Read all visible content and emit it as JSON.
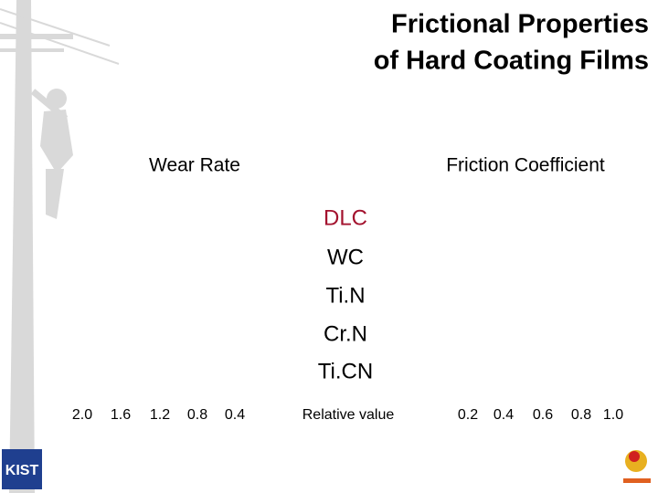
{
  "header": {
    "title": [
      "Frictional Properties",
      "of Hard Coating Films"
    ]
  },
  "axes": {
    "left_label": "Wear Rate",
    "right_label": "Friction Coefficient",
    "center_label": "Relative value",
    "left_ticks": [
      "2.0",
      "1.6",
      "1.2",
      "0.8",
      "0.4"
    ],
    "right_ticks": [
      "0.2",
      "0.4",
      "0.6",
      "0.8",
      "1.0"
    ]
  },
  "materials": [
    "DLC",
    "WC",
    "Ti.N",
    "Cr.N",
    "Ti.CN"
  ],
  "logo": {
    "text": "KIST"
  }
}
